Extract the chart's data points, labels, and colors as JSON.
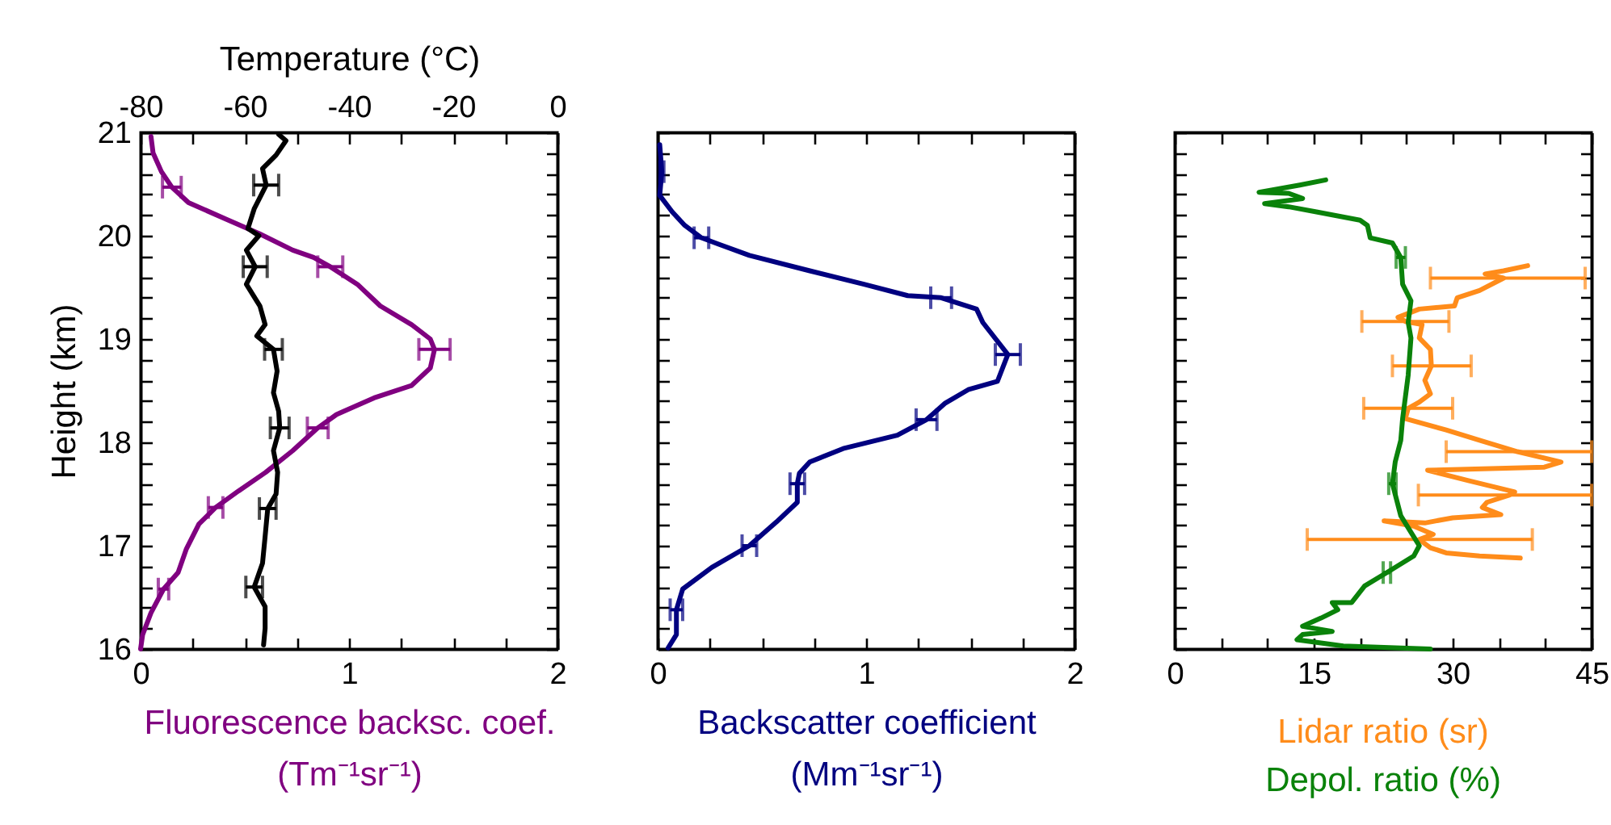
{
  "chart_data": [
    {
      "type": "line",
      "xlabel": "Fluorescence backsc. coef.\n(Tm⁻¹sr⁻¹)",
      "ylabel": "Height (km)",
      "x2label": "Temperature (°C)",
      "xlim": [
        0,
        2
      ],
      "xticks": [
        0,
        {
          "value": 0.25,
          "label": null
        },
        {
          "value": 0.5,
          "label": null
        },
        {
          "value": 0.75,
          "label": null
        },
        1,
        {
          "value": 1.25,
          "label": null
        },
        {
          "value": 1.5,
          "label": null
        },
        {
          "value": 1.75,
          "label": null
        },
        2
      ],
      "x2lim": [
        -80,
        0
      ],
      "x2ticks": [
        -80,
        {
          "value": -70,
          "label": null
        },
        -60,
        {
          "value": -50,
          "label": null
        },
        -40,
        {
          "value": -30,
          "label": null
        },
        -20,
        {
          "value": -10,
          "label": null
        },
        0
      ],
      "ylim": [
        16,
        21
      ],
      "yticks": [
        16,
        {
          "value": 16.2,
          "label": null
        },
        {
          "value": 16.4,
          "label": null
        },
        {
          "value": 16.6,
          "label": null
        },
        {
          "value": 16.8,
          "label": null
        },
        17,
        {
          "value": 17.2,
          "label": null
        },
        {
          "value": 17.4,
          "label": null
        },
        {
          "value": 17.6,
          "label": null
        },
        {
          "value": 17.8,
          "label": null
        },
        18,
        {
          "value": 18.2,
          "label": null
        },
        {
          "value": 18.4,
          "label": null
        },
        {
          "value": 18.6,
          "label": null
        },
        {
          "value": 18.8,
          "label": null
        },
        19,
        {
          "value": 19.2,
          "label": null
        },
        {
          "value": 19.4,
          "label": null
        },
        {
          "value": 19.6,
          "label": null
        },
        {
          "value": 19.8,
          "label": null
        },
        20,
        {
          "value": 20.2,
          "label": null
        },
        {
          "value": 20.4,
          "label": null
        },
        {
          "value": 20.6,
          "label": null
        },
        {
          "value": 20.8,
          "label": null
        },
        21
      ],
      "series": [
        {
          "color": "#800080",
          "x": [
            0.05,
            0.06,
            0.1,
            0.15,
            0.23,
            0.41,
            0.57,
            0.73,
            0.83,
            0.91,
            1.04,
            1.15,
            1.3,
            1.39,
            1.41,
            1.39,
            1.3,
            1.12,
            0.94,
            0.85,
            0.73,
            0.6,
            0.47,
            0.36,
            0.28,
            0.22,
            0.18,
            0.11,
            0.05,
            0.01,
            0
          ],
          "values": [
            20.96,
            20.8,
            20.62,
            20.47,
            20.32,
            20.16,
            20.02,
            19.86,
            19.79,
            19.7,
            19.53,
            19.32,
            19.14,
            19.0,
            18.9,
            18.72,
            18.55,
            18.43,
            18.27,
            18.14,
            17.92,
            17.71,
            17.53,
            17.37,
            17.21,
            16.97,
            16.74,
            16.58,
            16.35,
            16.14,
            16.0
          ],
          "xerrors": [
            null,
            null,
            null,
            0.045,
            null,
            null,
            null,
            null,
            null,
            0.06,
            null,
            null,
            null,
            null,
            0.075,
            null,
            null,
            null,
            null,
            0.05,
            null,
            null,
            null,
            0.035,
            null,
            null,
            null,
            0.025,
            null,
            null,
            null
          ]
        },
        {
          "color": "#000000",
          "axis": "x2",
          "x": [
            -53.5,
            -52.1,
            -54.0,
            -56.6,
            -55.9,
            -58.2,
            -59.4,
            -57.3,
            -59.7,
            -58.0,
            -59.7,
            -57.1,
            -56.1,
            -57.7,
            -54.5,
            -53.8,
            -54.5,
            -53.5,
            -53.3,
            -54.5,
            -53.7,
            -54.0,
            -55.6,
            -56.1,
            -56.6,
            -58.2,
            -56.1,
            -56.1,
            -56.4
          ],
          "values": [
            20.98,
            20.92,
            20.78,
            20.65,
            20.49,
            20.26,
            20.07,
            20.0,
            19.86,
            19.7,
            19.53,
            19.32,
            19.14,
            19.03,
            18.9,
            18.69,
            18.48,
            18.3,
            18.14,
            17.92,
            17.71,
            17.5,
            17.36,
            17.09,
            16.83,
            16.6,
            16.41,
            16.2,
            16.04
          ],
          "xerrors": [
            null,
            null,
            null,
            null,
            2.4,
            null,
            null,
            null,
            null,
            2.3,
            null,
            null,
            null,
            null,
            1.7,
            null,
            null,
            null,
            1.8,
            null,
            null,
            null,
            1.6,
            null,
            null,
            1.6,
            null,
            null,
            null
          ]
        }
      ]
    },
    {
      "type": "line",
      "xlabel": "Backscatter coefficient\n(Mm⁻¹sr⁻¹)",
      "tick_labels": "x",
      "xlim": [
        0,
        2
      ],
      "xticks": [
        0,
        {
          "value": 0.25,
          "label": null
        },
        {
          "value": 0.5,
          "label": null
        },
        {
          "value": 0.75,
          "label": null
        },
        1,
        {
          "value": 1.25,
          "label": null
        },
        {
          "value": 1.5,
          "label": null
        },
        {
          "value": 1.75,
          "label": null
        },
        2
      ],
      "ylim": [
        16,
        21
      ],
      "yticks": [
        16,
        {
          "value": 16.2,
          "label": null
        },
        {
          "value": 16.4,
          "label": null
        },
        {
          "value": 16.6,
          "label": null
        },
        {
          "value": 16.8,
          "label": null
        },
        17,
        {
          "value": 17.2,
          "label": null
        },
        {
          "value": 17.4,
          "label": null
        },
        {
          "value": 17.6,
          "label": null
        },
        {
          "value": 17.8,
          "label": null
        },
        18,
        {
          "value": 18.2,
          "label": null
        },
        {
          "value": 18.4,
          "label": null
        },
        {
          "value": 18.6,
          "label": null
        },
        {
          "value": 18.8,
          "label": null
        },
        19,
        {
          "value": 19.2,
          "label": null
        },
        {
          "value": 19.4,
          "label": null
        },
        {
          "value": 19.6,
          "label": null
        },
        {
          "value": 19.8,
          "label": null
        },
        20,
        {
          "value": 20.2,
          "label": null
        },
        {
          "value": 20.4,
          "label": null
        },
        {
          "value": 20.6,
          "label": null
        },
        {
          "value": 20.8,
          "label": null
        },
        21
      ],
      "series": [
        {
          "color": "#000080",
          "x": [
            0.01,
            0.02,
            0.01,
            0.07,
            0.13,
            0.21,
            0.29,
            0.44,
            0.73,
            0.99,
            1.2,
            1.36,
            1.53,
            1.56,
            1.68,
            1.63,
            1.49,
            1.38,
            1.29,
            1.15,
            0.89,
            0.73,
            0.68,
            0.67,
            0.67,
            0.57,
            0.44,
            0.26,
            0.12,
            0.09,
            0.09,
            0.05
          ],
          "values": [
            20.88,
            20.62,
            20.39,
            20.23,
            20.1,
            19.98,
            19.92,
            19.81,
            19.66,
            19.53,
            19.42,
            19.4,
            19.29,
            19.16,
            18.85,
            18.59,
            18.51,
            18.38,
            18.22,
            18.07,
            17.94,
            17.81,
            17.7,
            17.6,
            17.42,
            17.23,
            17.0,
            16.79,
            16.58,
            16.38,
            16.14,
            16.01
          ],
          "xerrors": [
            null,
            0.01,
            null,
            null,
            null,
            0.035,
            null,
            null,
            null,
            null,
            null,
            0.05,
            null,
            null,
            0.06,
            null,
            null,
            null,
            0.05,
            null,
            null,
            null,
            null,
            0.035,
            null,
            null,
            0.035,
            null,
            null,
            0.03,
            null,
            null
          ]
        }
      ]
    },
    {
      "type": "line",
      "tick_labels": "x",
      "legend": "bottom",
      "xlim": [
        0,
        45
      ],
      "xticks": [
        0,
        {
          "value": 5,
          "label": null
        },
        {
          "value": 10,
          "label": null
        },
        15,
        {
          "value": 20,
          "label": null
        },
        {
          "value": 25,
          "label": null
        },
        30,
        {
          "value": 35,
          "label": null
        },
        {
          "value": 40,
          "label": null
        },
        45
      ],
      "ylim": [
        16,
        21
      ],
      "yticks": [
        16,
        {
          "value": 16.2,
          "label": null
        },
        {
          "value": 16.4,
          "label": null
        },
        {
          "value": 16.6,
          "label": null
        },
        {
          "value": 16.8,
          "label": null
        },
        17,
        {
          "value": 17.2,
          "label": null
        },
        {
          "value": 17.4,
          "label": null
        },
        {
          "value": 17.6,
          "label": null
        },
        {
          "value": 17.8,
          "label": null
        },
        18,
        {
          "value": 18.2,
          "label": null
        },
        {
          "value": 18.4,
          "label": null
        },
        {
          "value": 18.6,
          "label": null
        },
        {
          "value": 18.8,
          "label": null
        },
        19,
        {
          "value": 19.2,
          "label": null
        },
        {
          "value": 19.4,
          "label": null
        },
        {
          "value": 19.6,
          "label": null
        },
        {
          "value": 19.8,
          "label": null
        },
        20,
        {
          "value": 20.2,
          "label": null
        },
        {
          "value": 20.4,
          "label": null
        },
        {
          "value": 20.6,
          "label": null
        },
        {
          "value": 20.8,
          "label": null
        },
        21
      ],
      "series": [
        {
          "name": "Lidar ratio (sr)",
          "color": "#ff8c1a",
          "x": [
            38.1,
            35.5,
            33.5,
            35.5,
            32.9,
            30.5,
            30.2,
            26.4,
            24.1,
            24.9,
            26.7,
            26.4,
            27.6,
            27.7,
            27.0,
            27.6,
            26.4,
            25.2,
            24.9,
            29.3,
            32.9,
            37.0,
            41.7,
            39.9,
            27.3,
            31.7,
            36.7,
            36.1,
            33.7,
            33.2,
            35.2,
            30.0,
            27.0,
            22.6,
            25.8,
            27.9,
            26.4,
            27.6,
            29.3,
            32.9,
            37.3
          ],
          "values": [
            19.71,
            19.66,
            19.63,
            19.59,
            19.47,
            19.4,
            19.32,
            19.29,
            19.21,
            19.17,
            19.14,
            19.01,
            18.9,
            18.74,
            18.6,
            18.47,
            18.39,
            18.33,
            18.23,
            18.12,
            18.02,
            17.91,
            17.81,
            17.76,
            17.73,
            17.63,
            17.52,
            17.49,
            17.42,
            17.37,
            17.3,
            17.27,
            17.22,
            17.24,
            17.19,
            17.11,
            17.06,
            16.98,
            16.93,
            16.9,
            16.88
          ],
          "xerrors": [
            null,
            null,
            null,
            [
              27.6,
              44.3
            ],
            null,
            null,
            null,
            null,
            null,
            [
              20.2,
              29.6
            ],
            null,
            null,
            null,
            [
              23.5,
              32.0
            ],
            null,
            null,
            null,
            [
              20.4,
              30.0
            ],
            null,
            null,
            null,
            [
              29.3,
              45
            ],
            null,
            null,
            null,
            null,
            null,
            [
              26.3,
              45
            ],
            null,
            null,
            null,
            null,
            null,
            null,
            null,
            null,
            [
              14.3,
              38.6
            ],
            null,
            null,
            null,
            null
          ]
        },
        {
          "name": "Depol. ratio (%)",
          "color": "#0a820a",
          "x": [
            16.3,
            13.5,
            9.1,
            12.3,
            13.8,
            9.7,
            12.3,
            15.3,
            20.0,
            20.8,
            21.1,
            23.5,
            24.4,
            24.6,
            25.5,
            25.2,
            25.5,
            25.2,
            24.6,
            24.4,
            23.8,
            23.5,
            24.4,
            25.5,
            26.4,
            25.8,
            22.9,
            20.5,
            19.1,
            17.0,
            17.6,
            15.8,
            13.8,
            17.0,
            13.8,
            13.2,
            18.2,
            27.6
          ],
          "values": [
            20.54,
            20.49,
            20.42,
            20.41,
            20.36,
            20.31,
            20.28,
            20.23,
            20.15,
            20.1,
            19.98,
            19.93,
            19.79,
            19.53,
            19.37,
            19.16,
            19.01,
            18.65,
            18.23,
            18.02,
            17.81,
            17.6,
            17.29,
            17.13,
            17.0,
            16.9,
            16.74,
            16.61,
            16.45,
            16.45,
            16.38,
            16.3,
            16.22,
            16.17,
            16.14,
            16.09,
            16.03,
            16.0
          ],
          "xerrors": [
            null,
            null,
            null,
            null,
            null,
            null,
            null,
            null,
            null,
            null,
            null,
            null,
            0.5,
            null,
            null,
            null,
            null,
            null,
            null,
            null,
            null,
            0.4,
            null,
            null,
            null,
            null,
            0.4,
            null,
            null,
            null,
            null,
            null,
            null,
            null,
            null,
            null,
            null,
            null
          ]
        }
      ]
    }
  ]
}
